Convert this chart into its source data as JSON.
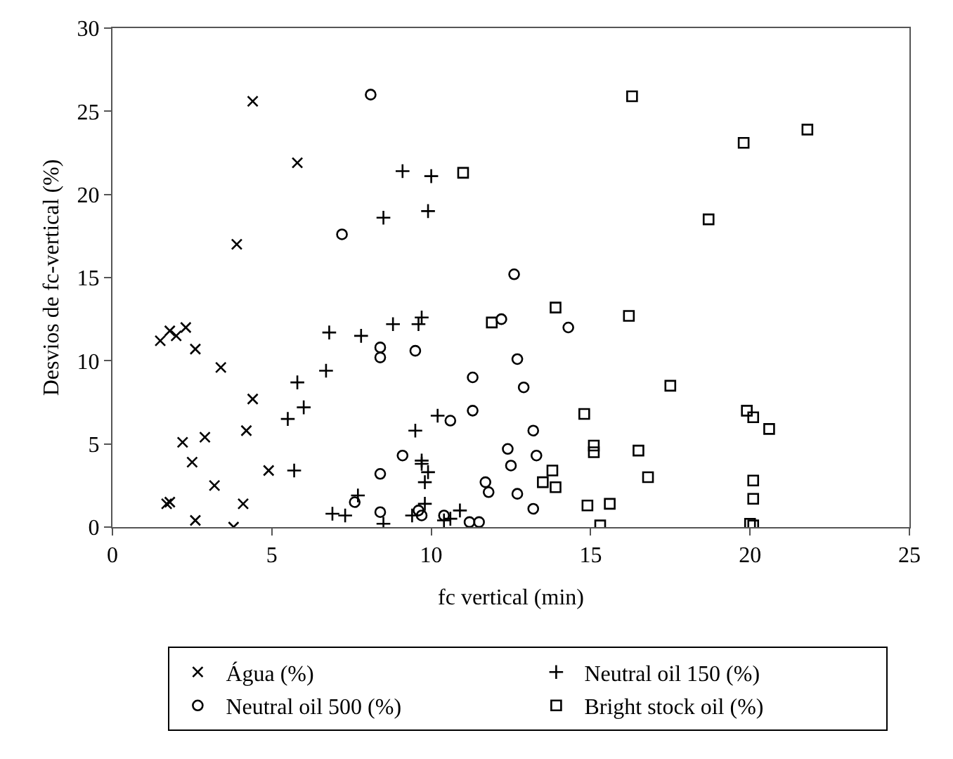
{
  "chart_data": {
    "type": "scatter",
    "xlabel": "fc vertical (min)",
    "ylabel": "Desvios de fc-vertical (%)",
    "xlim": [
      0,
      25
    ],
    "ylim": [
      0,
      30
    ],
    "xticks": [
      0,
      5,
      10,
      15,
      20,
      25
    ],
    "yticks": [
      0,
      5,
      10,
      15,
      20,
      25,
      30
    ],
    "legend": "bottom",
    "series": [
      {
        "name": "Água (%)",
        "color": "#000000",
        "marker": "cross",
        "x": [
          4.4,
          5.8,
          3.9,
          1.5,
          1.8,
          2.0,
          2.3,
          2.6,
          3.4,
          4.4,
          4.2,
          2.2,
          2.9,
          2.5,
          4.9,
          1.7,
          1.8,
          3.2,
          4.1,
          2.6,
          3.8
        ],
        "values": [
          25.6,
          21.9,
          17.0,
          11.2,
          11.8,
          11.5,
          12.0,
          10.7,
          9.6,
          7.7,
          5.8,
          5.1,
          5.4,
          3.9,
          3.4,
          1.4,
          1.5,
          2.5,
          1.4,
          0.4,
          0.0
        ]
      },
      {
        "name": "Neutral oil 150 (%)",
        "color": "#000000",
        "marker": "plus",
        "x": [
          9.1,
          10.0,
          8.5,
          9.9,
          6.8,
          7.8,
          8.8,
          9.6,
          9.7,
          6.7,
          5.8,
          6.0,
          5.5,
          5.7,
          9.5,
          10.2,
          9.7,
          9.7,
          9.9,
          9.8,
          9.8,
          7.7,
          6.9,
          7.3,
          8.5,
          9.4,
          10.4,
          10.6,
          10.9
        ],
        "values": [
          21.4,
          21.1,
          18.6,
          19.0,
          11.7,
          11.5,
          12.2,
          12.2,
          12.6,
          9.4,
          8.7,
          7.2,
          6.5,
          3.4,
          5.8,
          6.7,
          4.0,
          3.8,
          3.3,
          2.7,
          1.4,
          1.9,
          0.8,
          0.7,
          0.2,
          0.7,
          0.4,
          0.5,
          1.0
        ]
      },
      {
        "name": "Neutral oil 500 (%)",
        "color": "#000000",
        "marker": "circle",
        "x": [
          8.1,
          7.2,
          12.6,
          8.4,
          8.4,
          9.5,
          12.2,
          14.3,
          12.7,
          11.3,
          12.9,
          11.3,
          10.6,
          13.2,
          12.4,
          13.3,
          12.5,
          9.1,
          8.4,
          11.7,
          11.8,
          12.7,
          13.2,
          7.6,
          8.4,
          9.6,
          9.7,
          10.4,
          11.2,
          11.5
        ],
        "values": [
          26.0,
          17.6,
          15.2,
          10.8,
          10.2,
          10.6,
          12.5,
          12.0,
          10.1,
          9.0,
          8.4,
          7.0,
          6.4,
          5.8,
          4.7,
          4.3,
          3.7,
          4.3,
          3.2,
          2.7,
          2.1,
          2.0,
          1.1,
          1.5,
          0.9,
          1.0,
          0.7,
          0.7,
          0.3,
          0.3
        ]
      },
      {
        "name": "Bright stock oil (%)",
        "color": "#000000",
        "marker": "square",
        "x": [
          11.0,
          16.3,
          19.8,
          21.8,
          18.7,
          11.9,
          13.9,
          16.2,
          17.5,
          14.8,
          19.9,
          20.1,
          20.6,
          15.1,
          15.1,
          16.5,
          13.8,
          13.5,
          13.9,
          16.8,
          20.1,
          20.1,
          14.9,
          15.6,
          15.3,
          20.1,
          20.0
        ],
        "values": [
          21.3,
          25.9,
          23.1,
          23.9,
          18.5,
          12.3,
          13.2,
          12.7,
          8.5,
          6.8,
          7.0,
          6.6,
          5.9,
          4.9,
          4.5,
          4.6,
          3.4,
          2.7,
          2.4,
          3.0,
          2.8,
          1.7,
          1.3,
          1.4,
          0.1,
          0.1,
          0.2
        ]
      }
    ]
  }
}
